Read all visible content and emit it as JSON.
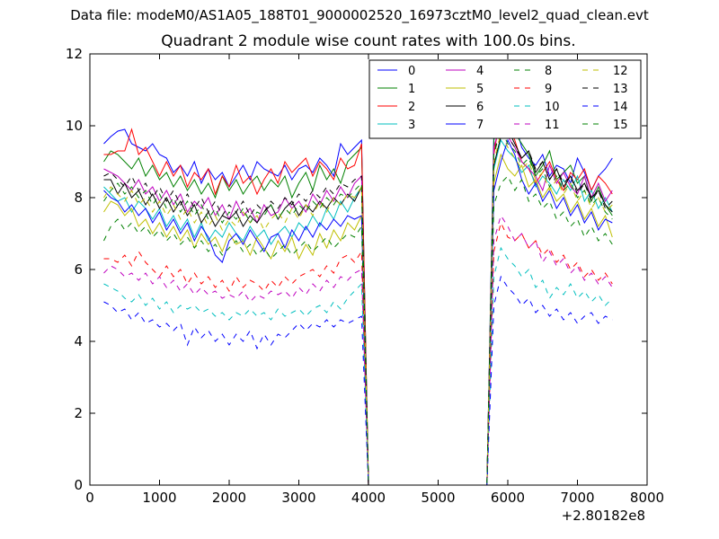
{
  "figure": {
    "supertitle": "Data file: modeM0/AS1A05_188T01_9000002520_16973cztM0_level2_quad_clean.evt"
  },
  "chart_data": {
    "type": "line",
    "title": "Quadrant 2 module wise count rates with 100.0s bins.",
    "xlabel": "",
    "ylabel": "",
    "x_offset_label": "+2.80182e8",
    "xlim": [
      0,
      8000
    ],
    "ylim": [
      0,
      12
    ],
    "xticks": [
      0,
      1000,
      2000,
      3000,
      4000,
      5000,
      6000,
      7000,
      8000
    ],
    "yticks": [
      0,
      2,
      4,
      6,
      8,
      10,
      12
    ],
    "grid": false,
    "legend_position": "top-right",
    "x": [
      200,
      300,
      400,
      500,
      600,
      700,
      800,
      900,
      1000,
      1100,
      1200,
      1300,
      1400,
      1500,
      1600,
      1700,
      1800,
      1900,
      2000,
      2100,
      2200,
      2300,
      2400,
      2500,
      2600,
      2700,
      2800,
      2900,
      3000,
      3100,
      3200,
      3300,
      3400,
      3500,
      3600,
      3700,
      3800,
      3900,
      4000,
      4100,
      4200,
      4300,
      4400,
      4500,
      4600,
      4700,
      4800,
      4900,
      5000,
      5100,
      5200,
      5300,
      5400,
      5500,
      5600,
      5700,
      5800,
      5900,
      6000,
      6100,
      6200,
      6300,
      6400,
      6500,
      6600,
      6700,
      6800,
      6900,
      7000,
      7100,
      7200,
      7300,
      7400,
      7500
    ],
    "series": [
      {
        "name": "0",
        "color": "#0000ff",
        "dash": "solid",
        "pre": [
          9.5,
          9.7,
          9.85,
          9.9,
          9.5,
          9.4,
          9.3,
          9.5,
          9.2,
          9.1,
          8.7,
          8.9,
          8.6,
          9.0,
          8.4,
          8.8,
          8.5,
          8.7,
          8.3,
          8.6,
          8.9,
          8.5,
          9.0,
          8.8,
          8.7,
          8.6,
          8.9,
          8.5,
          8.8,
          8.9,
          8.7,
          9.1,
          8.9,
          8.6,
          9.5,
          9.2,
          9.4,
          9.6
        ],
        "post": [
          9.8,
          10.9,
          10.6,
          10.1,
          9.4,
          9.1,
          8.9,
          9.2,
          8.6,
          8.9,
          8.8,
          8.4,
          9.1,
          8.7,
          8.2,
          8.6,
          8.8,
          9.1
        ]
      },
      {
        "name": "1",
        "color": "#008000",
        "dash": "solid",
        "pre": [
          9.0,
          9.3,
          9.2,
          9.0,
          8.8,
          9.1,
          8.6,
          8.9,
          8.5,
          8.7,
          8.3,
          8.6,
          8.2,
          8.5,
          8.1,
          8.4,
          8.0,
          8.6,
          8.2,
          8.5,
          8.1,
          8.4,
          8.6,
          8.2,
          8.5,
          8.3,
          8.6,
          8.0,
          8.4,
          8.7,
          8.2,
          8.9,
          8.5,
          8.8,
          8.4,
          9.0,
          9.2,
          9.4
        ],
        "post": [
          9.6,
          10.5,
          10.2,
          9.8,
          9.5,
          9.2,
          8.6,
          8.9,
          9.3,
          8.5,
          8.7,
          8.9,
          8.4,
          8.6,
          7.9,
          8.3,
          7.8,
          7.5
        ]
      },
      {
        "name": "2",
        "color": "#ff0000",
        "dash": "solid",
        "pre": [
          9.2,
          9.2,
          9.3,
          9.3,
          9.9,
          9.2,
          9.4,
          9.0,
          8.6,
          9.0,
          8.6,
          8.9,
          8.3,
          8.7,
          8.5,
          8.8,
          8.1,
          8.6,
          8.3,
          8.9,
          8.4,
          8.6,
          8.1,
          8.5,
          8.8,
          8.4,
          9.0,
          8.7,
          8.9,
          9.1,
          8.6,
          9.0,
          8.8,
          8.5,
          9.1,
          8.8,
          8.9,
          9.5
        ],
        "post": [
          9.2,
          10.4,
          10.0,
          9.6,
          9.0,
          8.8,
          8.4,
          8.7,
          9.0,
          8.5,
          8.2,
          8.7,
          8.5,
          8.8,
          8.2,
          8.6,
          8.4,
          8.1
        ]
      },
      {
        "name": "3",
        "color": "#00bfbf",
        "dash": "solid",
        "pre": [
          8.3,
          8.1,
          7.9,
          8.0,
          7.6,
          7.9,
          7.7,
          7.4,
          7.7,
          7.2,
          7.5,
          7.1,
          7.4,
          6.9,
          7.3,
          6.8,
          7.1,
          6.9,
          7.3,
          7.0,
          6.8,
          7.2,
          6.9,
          7.1,
          6.7,
          7.0,
          7.2,
          6.9,
          7.3,
          7.1,
          7.5,
          7.2,
          7.7,
          7.4,
          7.9,
          7.6,
          8.0,
          8.3
        ],
        "post": [
          8.8,
          9.6,
          9.3,
          9.1,
          8.7,
          8.9,
          8.3,
          8.6,
          8.4,
          8.1,
          8.5,
          8.2,
          8.6,
          7.9,
          8.2,
          7.7,
          8.0,
          7.6
        ]
      },
      {
        "name": "4",
        "color": "#bf00bf",
        "dash": "solid",
        "pre": [
          8.8,
          8.7,
          8.6,
          8.4,
          8.2,
          8.5,
          8.1,
          8.3,
          7.9,
          8.2,
          7.8,
          8.1,
          7.6,
          7.9,
          7.7,
          8.0,
          7.5,
          7.8,
          7.4,
          7.9,
          7.5,
          7.7,
          7.3,
          7.8,
          7.5,
          7.6,
          8.0,
          7.7,
          7.9,
          7.6,
          8.1,
          7.8,
          8.2,
          7.9,
          8.3,
          8.0,
          8.4,
          8.6
        ],
        "post": [
          9.4,
          10.1,
          9.7,
          9.4,
          9.0,
          8.8,
          8.6,
          8.2,
          8.9,
          8.4,
          8.7,
          8.3,
          8.1,
          8.6,
          8.0,
          8.4,
          7.9,
          8.2
        ]
      },
      {
        "name": "5",
        "color": "#bfbf00",
        "dash": "solid",
        "pre": [
          7.6,
          7.9,
          7.8,
          7.5,
          7.7,
          7.2,
          7.4,
          7.0,
          7.3,
          6.9,
          7.2,
          6.8,
          7.1,
          6.6,
          7.0,
          6.7,
          6.9,
          6.5,
          7.0,
          6.7,
          6.8,
          6.4,
          6.9,
          6.6,
          6.3,
          6.8,
          6.5,
          6.9,
          6.3,
          6.7,
          6.4,
          7.0,
          6.6,
          7.1,
          6.8,
          7.3,
          7.1,
          7.5
        ],
        "post": [
          8.4,
          9.2,
          8.8,
          8.6,
          8.9,
          8.3,
          8.5,
          8.0,
          8.3,
          7.9,
          8.1,
          7.6,
          7.9,
          7.4,
          7.7,
          7.2,
          7.5,
          6.9
        ]
      },
      {
        "name": "6",
        "color": "#000000",
        "dash": "solid",
        "pre": [
          8.5,
          8.5,
          8.1,
          8.4,
          8.0,
          8.2,
          7.8,
          8.1,
          7.7,
          8.0,
          7.6,
          7.9,
          7.5,
          7.8,
          7.3,
          7.6,
          7.2,
          7.5,
          7.4,
          7.6,
          7.2,
          7.5,
          7.3,
          7.6,
          7.8,
          7.4,
          7.7,
          7.9,
          7.5,
          7.8,
          7.6,
          7.9,
          7.7,
          8.0,
          7.8,
          8.1,
          7.9,
          8.3
        ],
        "post": [
          8.9,
          9.7,
          9.9,
          9.5,
          9.1,
          9.3,
          8.7,
          9.0,
          8.5,
          8.8,
          8.3,
          8.6,
          8.2,
          8.4,
          8.0,
          8.2,
          7.8,
          7.6
        ]
      },
      {
        "name": "7",
        "color": "#0000ff",
        "dash": "solid",
        "pre": [
          8.2,
          8.0,
          7.9,
          7.6,
          7.8,
          7.5,
          7.7,
          7.3,
          7.6,
          7.1,
          7.4,
          7.0,
          7.3,
          6.8,
          7.2,
          6.9,
          6.4,
          6.2,
          6.8,
          7.0,
          6.7,
          7.1,
          6.8,
          6.5,
          6.9,
          7.0,
          6.6,
          7.1,
          6.8,
          7.2,
          6.9,
          7.3,
          7.1,
          7.4,
          7.2,
          7.5,
          7.4,
          7.5
        ],
        "post": [
          8.2,
          9.0,
          9.6,
          9.2,
          8.5,
          8.1,
          8.4,
          7.9,
          8.2,
          7.7,
          8.0,
          7.5,
          7.8,
          7.3,
          7.6,
          7.1,
          7.4,
          7.3
        ]
      },
      {
        "name": "8",
        "color": "#008000",
        "dash": "dashed",
        "pre": [
          6.8,
          7.2,
          7.4,
          7.1,
          7.3,
          7.0,
          7.2,
          6.9,
          7.1,
          6.8,
          7.0,
          6.7,
          6.9,
          6.6,
          6.8,
          6.5,
          6.7,
          6.4,
          6.6,
          6.8,
          6.5,
          6.7,
          6.4,
          6.6,
          6.3,
          6.5,
          6.7,
          6.4,
          6.6,
          6.8,
          6.5,
          6.7,
          6.9,
          6.6,
          6.8,
          7.0,
          6.9,
          7.2
        ],
        "post": [
          7.8,
          8.4,
          8.6,
          8.2,
          8.5,
          7.9,
          8.1,
          7.7,
          7.9,
          7.4,
          7.6,
          7.2,
          7.4,
          6.9,
          7.2,
          6.8,
          7.0,
          6.7
        ]
      },
      {
        "name": "9",
        "color": "#ff0000",
        "dash": "dashed",
        "pre": [
          6.3,
          6.3,
          6.2,
          6.4,
          6.1,
          6.5,
          6.2,
          6.0,
          5.8,
          6.1,
          5.8,
          6.0,
          5.6,
          5.9,
          5.6,
          5.8,
          5.5,
          5.7,
          5.4,
          5.8,
          5.5,
          5.7,
          5.6,
          5.4,
          5.7,
          5.5,
          5.8,
          5.6,
          5.8,
          5.9,
          6.0,
          5.8,
          6.1,
          5.9,
          6.3,
          6.4,
          6.2,
          6.5
        ],
        "post": [
          6.5,
          7.3,
          6.9,
          6.8,
          7.0,
          6.6,
          6.8,
          6.4,
          6.6,
          6.2,
          6.4,
          6.0,
          6.2,
          5.8,
          6.0,
          5.7,
          5.9,
          5.6
        ]
      },
      {
        "name": "10",
        "color": "#00bfbf",
        "dash": "dashed",
        "pre": [
          5.6,
          5.5,
          5.4,
          5.2,
          5.1,
          5.3,
          5.0,
          5.2,
          4.9,
          5.1,
          4.8,
          5.0,
          4.9,
          5.0,
          4.8,
          4.9,
          4.7,
          4.8,
          4.6,
          4.8,
          4.7,
          4.9,
          4.7,
          4.8,
          4.6,
          4.9,
          4.7,
          4.8,
          4.9,
          4.7,
          4.9,
          5.0,
          4.8,
          5.1,
          4.9,
          5.2,
          5.4,
          5.6
        ],
        "post": [
          5.8,
          6.6,
          6.3,
          6.1,
          5.8,
          6.0,
          5.5,
          5.7,
          5.2,
          5.5,
          5.3,
          5.6,
          5.2,
          5.4,
          5.1,
          5.3,
          5.0,
          5.2
        ]
      },
      {
        "name": "11",
        "color": "#bf00bf",
        "dash": "dashed",
        "pre": [
          5.9,
          6.1,
          6.0,
          5.8,
          5.9,
          5.7,
          5.9,
          5.6,
          5.8,
          5.5,
          5.7,
          5.4,
          5.6,
          5.3,
          5.5,
          5.3,
          5.4,
          5.2,
          5.3,
          5.2,
          5.4,
          5.1,
          5.3,
          5.2,
          5.4,
          5.3,
          5.4,
          5.2,
          5.5,
          5.3,
          5.6,
          5.4,
          5.7,
          5.5,
          5.8,
          5.7,
          5.9,
          6.0
        ],
        "post": [
          6.8,
          7.5,
          7.2,
          6.8,
          7.0,
          6.6,
          6.8,
          6.2,
          6.5,
          6.1,
          6.3,
          5.9,
          6.1,
          5.7,
          5.9,
          5.6,
          5.8,
          5.5
        ]
      },
      {
        "name": "12",
        "color": "#bfbf00",
        "dash": "dashed",
        "pre": [
          8.0,
          8.3,
          8.1,
          7.9,
          8.2,
          7.8,
          8.0,
          7.6,
          7.9,
          7.5,
          7.8,
          7.4,
          7.7,
          7.3,
          7.6,
          7.2,
          7.5,
          7.1,
          7.4,
          7.2,
          7.6,
          7.3,
          7.5,
          7.1,
          7.4,
          7.6,
          7.3,
          7.7,
          7.4,
          7.8,
          7.5,
          7.9,
          7.6,
          8.0,
          7.8,
          8.1,
          8.0,
          8.3
        ],
        "post": [
          9.0,
          9.8,
          9.4,
          9.1,
          8.8,
          9.0,
          8.5,
          8.7,
          8.2,
          8.5,
          8.1,
          8.4,
          7.9,
          8.2,
          7.7,
          8.0,
          7.6,
          7.8
        ]
      },
      {
        "name": "13",
        "color": "#000000",
        "dash": "dashed",
        "pre": [
          8.6,
          8.7,
          8.5,
          8.3,
          8.6,
          8.2,
          8.4,
          8.0,
          8.3,
          7.9,
          8.2,
          7.8,
          8.1,
          7.7,
          8.0,
          7.6,
          7.9,
          7.5,
          7.8,
          7.6,
          7.9,
          7.5,
          7.8,
          7.6,
          7.9,
          7.7,
          8.0,
          7.8,
          8.1,
          7.9,
          8.2,
          8.0,
          8.3,
          8.1,
          8.4,
          8.3,
          8.5,
          8.6
        ],
        "post": [
          9.2,
          10.0,
          9.7,
          9.4,
          9.1,
          9.3,
          8.8,
          9.0,
          8.5,
          8.8,
          8.4,
          8.6,
          8.1,
          8.4,
          7.9,
          8.2,
          7.7,
          7.9
        ]
      },
      {
        "name": "14",
        "color": "#0000ff",
        "dash": "dashed",
        "pre": [
          5.1,
          5.0,
          4.8,
          4.9,
          4.6,
          4.8,
          4.5,
          4.6,
          4.4,
          4.5,
          4.3,
          4.5,
          3.9,
          4.4,
          4.1,
          4.3,
          4.0,
          4.2,
          3.9,
          4.2,
          4.0,
          4.3,
          3.8,
          4.2,
          3.9,
          4.2,
          4.1,
          4.3,
          4.5,
          4.3,
          4.5,
          4.4,
          4.6,
          4.4,
          4.6,
          4.5,
          4.6,
          4.7
        ],
        "post": [
          5.0,
          5.8,
          5.5,
          5.3,
          5.0,
          5.2,
          4.8,
          5.0,
          4.7,
          4.9,
          4.6,
          4.8,
          4.5,
          4.7,
          4.8,
          4.5,
          4.7,
          4.6
        ]
      },
      {
        "name": "15",
        "color": "#008000",
        "dash": "dashed",
        "pre": [
          7.9,
          8.2,
          8.4,
          8.1,
          8.3,
          8.0,
          8.2,
          7.8,
          8.1,
          7.7,
          8.0,
          7.6,
          7.9,
          7.5,
          7.8,
          7.4,
          7.7,
          7.3,
          7.6,
          7.4,
          7.7,
          7.3,
          7.6,
          7.5,
          7.8,
          7.4,
          7.7,
          7.5,
          7.8,
          7.6,
          7.9,
          7.7,
          8.0,
          7.8,
          8.1,
          8.0,
          8.2,
          8.4
        ],
        "post": [
          9.2,
          9.9,
          9.5,
          9.3,
          8.9,
          9.1,
          8.6,
          8.8,
          8.3,
          8.6,
          8.2,
          8.4,
          8.0,
          8.2,
          7.8,
          8.0,
          7.6,
          7.4
        ]
      }
    ]
  }
}
